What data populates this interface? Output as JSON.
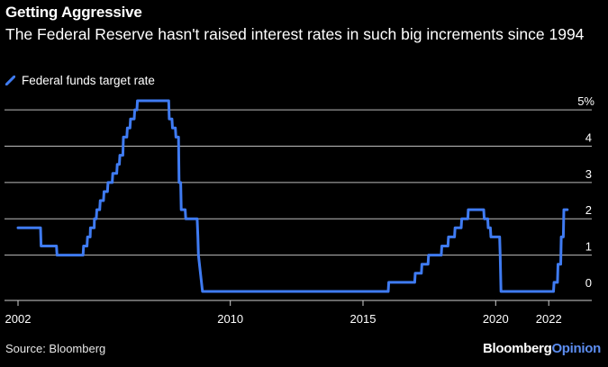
{
  "header": {
    "title": "Getting Aggressive",
    "subtitle": "The Federal Reserve hasn't raised interest rates in such big increments since 1994"
  },
  "footer": {
    "source": "Source: Bloomberg",
    "brand_left": "Bloomberg",
    "brand_right": "Opinion"
  },
  "colors": {
    "series": "#3f7bf2",
    "grid": "#bdbdbd",
    "background": "#000000",
    "brand_accent": "#5c8df0"
  },
  "chart_data": {
    "type": "line",
    "title": "Getting Aggressive",
    "subtitle": "The Federal Reserve hasn't raised interest rates in such big increments since 1994",
    "xlabel": "",
    "ylabel": "",
    "xlim": [
      2002,
      2022.4
    ],
    "ylim": [
      0,
      5.25
    ],
    "y_ticks": [
      0,
      1,
      2,
      3,
      4,
      5
    ],
    "y_tick_labels": [
      "0",
      "1",
      "2",
      "3",
      "4",
      "5%"
    ],
    "x_ticks": [
      2002,
      2010,
      2015,
      2020,
      2022
    ],
    "x_tick_labels": [
      "2002",
      "2010",
      "2015",
      "2020",
      "2022"
    ],
    "grid": true,
    "legend": "top-left",
    "series": [
      {
        "name": "Federal funds target rate",
        "points": [
          [
            2002.0,
            1.75
          ],
          [
            2002.08,
            1.75
          ],
          [
            2002.85,
            1.75
          ],
          [
            2002.87,
            1.25
          ],
          [
            2003.45,
            1.25
          ],
          [
            2003.47,
            1.0
          ],
          [
            2004.45,
            1.0
          ],
          [
            2004.47,
            1.25
          ],
          [
            2004.6,
            1.25
          ],
          [
            2004.62,
            1.5
          ],
          [
            2004.72,
            1.5
          ],
          [
            2004.73,
            1.75
          ],
          [
            2004.87,
            1.75
          ],
          [
            2004.88,
            2.0
          ],
          [
            2004.95,
            2.0
          ],
          [
            2004.97,
            2.25
          ],
          [
            2005.08,
            2.25
          ],
          [
            2005.1,
            2.5
          ],
          [
            2005.22,
            2.5
          ],
          [
            2005.24,
            2.75
          ],
          [
            2005.37,
            2.75
          ],
          [
            2005.39,
            3.0
          ],
          [
            2005.55,
            3.0
          ],
          [
            2005.57,
            3.25
          ],
          [
            2005.72,
            3.25
          ],
          [
            2005.74,
            3.5
          ],
          [
            2005.82,
            3.5
          ],
          [
            2005.84,
            3.75
          ],
          [
            2005.95,
            3.75
          ],
          [
            2005.97,
            4.25
          ],
          [
            2006.1,
            4.25
          ],
          [
            2006.12,
            4.5
          ],
          [
            2006.22,
            4.5
          ],
          [
            2006.24,
            4.75
          ],
          [
            2006.38,
            4.75
          ],
          [
            2006.4,
            5.0
          ],
          [
            2006.48,
            5.0
          ],
          [
            2006.5,
            5.25
          ],
          [
            2007.68,
            5.25
          ],
          [
            2007.7,
            4.75
          ],
          [
            2007.8,
            4.75
          ],
          [
            2007.82,
            4.5
          ],
          [
            2007.93,
            4.5
          ],
          [
            2007.95,
            4.25
          ],
          [
            2008.05,
            4.25
          ],
          [
            2008.07,
            3.0
          ],
          [
            2008.13,
            3.0
          ],
          [
            2008.15,
            2.25
          ],
          [
            2008.3,
            2.25
          ],
          [
            2008.32,
            2.0
          ],
          [
            2008.75,
            2.0
          ],
          [
            2008.78,
            1.5
          ],
          [
            2008.8,
            1.0
          ],
          [
            2008.95,
            0.0
          ],
          [
            2015.95,
            0.0
          ],
          [
            2015.97,
            0.25
          ],
          [
            2016.95,
            0.25
          ],
          [
            2016.97,
            0.5
          ],
          [
            2017.2,
            0.5
          ],
          [
            2017.22,
            0.75
          ],
          [
            2017.45,
            0.75
          ],
          [
            2017.47,
            1.0
          ],
          [
            2017.95,
            1.0
          ],
          [
            2017.97,
            1.25
          ],
          [
            2018.2,
            1.25
          ],
          [
            2018.22,
            1.5
          ],
          [
            2018.45,
            1.5
          ],
          [
            2018.47,
            1.75
          ],
          [
            2018.7,
            1.75
          ],
          [
            2018.72,
            2.0
          ],
          [
            2018.95,
            2.0
          ],
          [
            2018.97,
            2.25
          ],
          [
            2019.55,
            2.25
          ],
          [
            2019.57,
            2.0
          ],
          [
            2019.7,
            2.0
          ],
          [
            2019.72,
            1.75
          ],
          [
            2019.8,
            1.75
          ],
          [
            2019.82,
            1.5
          ],
          [
            2020.15,
            1.5
          ],
          [
            2020.17,
            1.0
          ],
          [
            2020.2,
            0.0
          ],
          [
            2022.18,
            0.0
          ],
          [
            2022.2,
            0.25
          ],
          [
            2022.33,
            0.25
          ],
          [
            2022.35,
            0.75
          ],
          [
            2022.45,
            0.75
          ],
          [
            2022.47,
            1.5
          ],
          [
            2022.55,
            1.5
          ],
          [
            2022.57,
            2.25
          ],
          [
            2022.7,
            2.25
          ]
        ]
      }
    ]
  }
}
